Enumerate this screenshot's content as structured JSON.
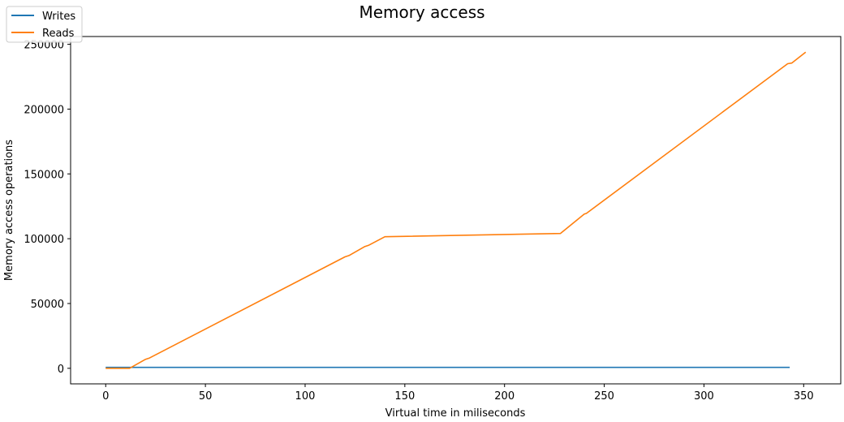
{
  "chart_data": {
    "type": "line",
    "title": "Memory access",
    "xlabel": "Virtual time in miliseconds",
    "ylabel": "Memory access operations",
    "xlim": [
      -17.6,
      368.6
    ],
    "ylim": [
      -12000,
      256000
    ],
    "xticks": [
      0,
      50,
      100,
      150,
      200,
      250,
      300,
      350
    ],
    "yticks": [
      0,
      50000,
      100000,
      150000,
      200000,
      250000
    ],
    "grid": false,
    "legend_position": "top-left (outside axes)",
    "series": [
      {
        "name": "Writes",
        "color": "#1f77b4",
        "x": [
          0,
          343
        ],
        "y": [
          700,
          700
        ]
      },
      {
        "name": "Reads",
        "color": "#ff7f0e",
        "x": [
          0,
          12,
          20,
          22,
          120,
          122,
          130,
          132,
          140,
          228,
          240,
          241,
          342,
          344,
          351
        ],
        "y": [
          0,
          0,
          7000,
          8000,
          86000,
          87000,
          94000,
          95000,
          101500,
          104000,
          119000,
          119500,
          235000,
          235500,
          244000
        ]
      }
    ]
  }
}
